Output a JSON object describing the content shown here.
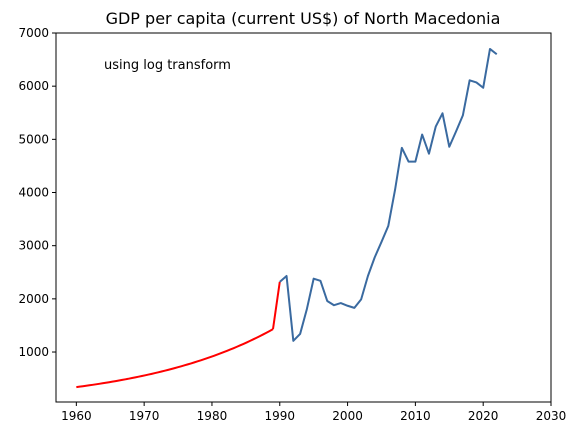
{
  "chart_data": {
    "type": "line",
    "title": "GDP per capita (current US$) of North Macedonia",
    "xlabel": "",
    "ylabel": "",
    "annotation": "using log transform",
    "xlim": [
      1957,
      2030
    ],
    "ylim": [
      60,
      7000
    ],
    "x_ticks": [
      1960,
      1970,
      1980,
      1990,
      2000,
      2010,
      2020,
      2030
    ],
    "y_ticks": [
      1000,
      2000,
      3000,
      4000,
      5000,
      6000,
      7000
    ],
    "grid": false,
    "legend": "none",
    "series": [
      {
        "color": "#ff0000",
        "curve": "exponential",
        "x": [
          1960,
          1989
        ],
        "y": [
          340,
          1430
        ]
      },
      {
        "color": "#ff0000",
        "curve": "linear",
        "x": [
          1989,
          1990
        ],
        "y": [
          1430,
          2320
        ]
      },
      {
        "color": "#3a6aa0",
        "curve": "linear",
        "x": [
          1990,
          1991,
          1992,
          1993,
          1994,
          1995,
          1996,
          1997,
          1998,
          1999,
          2000,
          2001,
          2002,
          2003,
          2004,
          2005,
          2006,
          2007,
          2008,
          2009,
          2010,
          2011,
          2012,
          2013,
          2014,
          2015,
          2016,
          2017,
          2018,
          2019,
          2020,
          2021,
          2022
        ],
        "y": [
          2320,
          2430,
          1210,
          1340,
          1810,
          2380,
          2340,
          1960,
          1880,
          1920,
          1870,
          1830,
          1990,
          2430,
          2780,
          3070,
          3370,
          4050,
          4840,
          4580,
          4580,
          5090,
          4730,
          5240,
          5490,
          4860,
          5150,
          5450,
          6110,
          6070,
          5970,
          6700,
          6600
        ]
      }
    ]
  }
}
